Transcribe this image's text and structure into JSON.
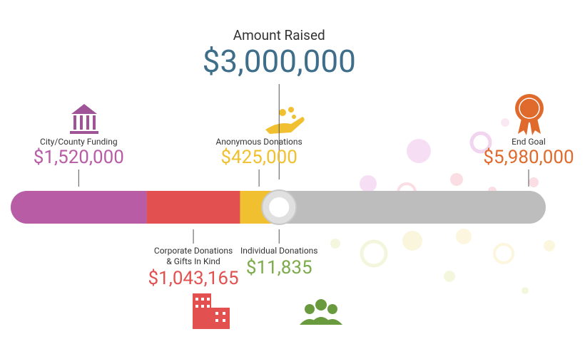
{
  "chart_data": {
    "type": "progress",
    "categories": [
      "City/County Funding",
      "Corporate Donations\n& Gifts In Kind",
      "Anonymous Donations",
      "Individual Donations"
    ],
    "values": [
      1520000,
      1043165,
      425000,
      11835
    ],
    "value_labels": [
      "$1,520,000",
      "$1,043,165",
      "$425,000",
      "$11,835"
    ],
    "colors": [
      "#b85ca6",
      "#e2504f",
      "#f0c030",
      "#7bab4a"
    ],
    "raised": {
      "label": "Amount Raised",
      "value": 3000000,
      "value_label": "$3,000,000"
    },
    "goal": {
      "label": "End Goal",
      "value": 5980000,
      "value_label": "$5,980,000",
      "color": "#e06a2c"
    },
    "xlim": [
      0,
      5980000
    ]
  }
}
